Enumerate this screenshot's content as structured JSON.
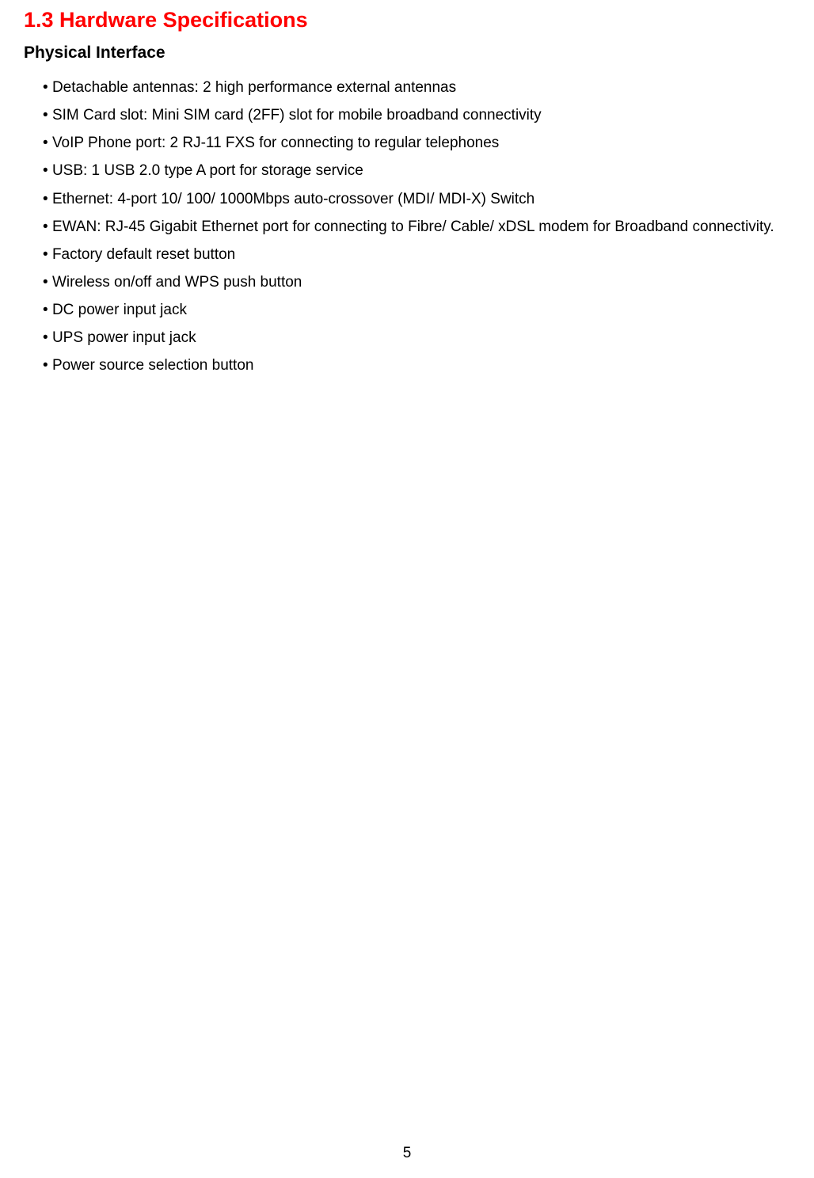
{
  "heading": {
    "section": "1.3 Hardware Specifications",
    "subsection": "Physical Interface"
  },
  "bullets": [
    "Detachable antennas: 2 high performance external antennas",
    "SIM Card slot: Mini SIM card (2FF) slot for mobile broadband connectivity",
    "VoIP Phone port: 2 RJ-11 FXS for connecting to regular telephones",
    "USB: 1 USB 2.0 type A port for storage service",
    "Ethernet: 4-port 10/ 100/ 1000Mbps auto-crossover (MDI/ MDI-X) Switch",
    "EWAN: RJ-45 Gigabit Ethernet port for connecting to Fibre/ Cable/ xDSL modem for Broadband connectivity.",
    "Factory default reset button",
    "Wireless on/off and WPS push button",
    "DC power input jack",
    "UPS power input jack",
    "Power source selection button"
  ],
  "pageNumber": "5",
  "styles": {
    "headingColor": "#ff0000",
    "headingFontSize": 27,
    "subheadingFontSize": 21,
    "bodyFontSize": 19,
    "textColor": "#000000",
    "backgroundColor": "#ffffff",
    "lineHeight": 1.85
  }
}
